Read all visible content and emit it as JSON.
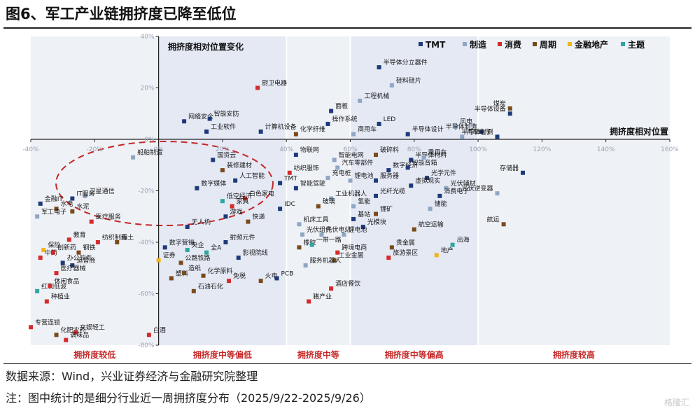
{
  "figure": {
    "title": "图6、军工产业链拥挤度已降至低位",
    "source": "数据来源：Wind，兴业证券经济与金融研究院整理",
    "note": "注：图中统计的是细分行业近一周拥挤度分布（2025/9/22-2025/9/26）",
    "watermark": "格隆汇"
  },
  "chart_data": {
    "type": "scatter",
    "title": "拥挤度相对位置变化",
    "xlabel": "拥挤度相对位置",
    "ylabel": "",
    "xlim": [
      -40,
      160
    ],
    "ylim": [
      -80,
      40
    ],
    "x_ticks": [
      "-40%",
      "-20%",
      "0%",
      "20%",
      "40%",
      "60%",
      "80%",
      "100%",
      "120%",
      "140%",
      "160%"
    ],
    "y_ticks": [
      "40%",
      "20%",
      "0%",
      "-20%",
      "-40%",
      "-60%",
      "-80%"
    ],
    "grid": false,
    "legend_position": "top-right",
    "zones": [
      {
        "label": "拥挤度较低",
        "from": -40,
        "to": 0
      },
      {
        "label": "拥挤度中等偏低",
        "from": 0,
        "to": 40
      },
      {
        "label": "拥挤度中等",
        "from": 40,
        "to": 60
      },
      {
        "label": "拥挤度中等偏高",
        "from": 60,
        "to": 100
      },
      {
        "label": "拥挤度较高",
        "from": 100,
        "to": 160
      }
    ],
    "highlight": "dashed-ellipse",
    "categories": [
      {
        "name": "TMT",
        "color": "#1f3a7a"
      },
      {
        "name": "制造",
        "color": "#8fa6c4"
      },
      {
        "name": "消费",
        "color": "#d62b2b"
      },
      {
        "name": "周期",
        "color": "#7a4a1a"
      },
      {
        "name": "金融地产",
        "color": "#f0b51c"
      },
      {
        "name": "主题",
        "color": "#2ea6a0"
      }
    ],
    "points": [
      {
        "label": "半导体分立器件",
        "group": "TMT",
        "x": 69,
        "y": 28
      },
      {
        "label": "硅料硅片",
        "group": "制造",
        "x": 73,
        "y": 21
      },
      {
        "label": "厨卫电器",
        "group": "消费",
        "x": 31,
        "y": 20
      },
      {
        "label": "工程机械",
        "group": "制造",
        "x": 63,
        "y": 15
      },
      {
        "label": "面板",
        "group": "TMT",
        "x": 54,
        "y": 11
      },
      {
        "label": "煤炭",
        "group": "周期",
        "x": 110,
        "y": 12
      },
      {
        "label": "半导体设备",
        "group": "TMT",
        "x": 110,
        "y": 10
      },
      {
        "label": "网络安全",
        "group": "TMT",
        "x": 8,
        "y": 7
      },
      {
        "label": "智能安防",
        "group": "TMT",
        "x": 16,
        "y": 8
      },
      {
        "label": "操作系统",
        "group": "TMT",
        "x": 53,
        "y": 6
      },
      {
        "label": "LED",
        "group": "TMT",
        "x": 69,
        "y": 6
      },
      {
        "label": "风电",
        "group": "制造",
        "x": 93,
        "y": 5
      },
      {
        "label": "半导体制造",
        "group": "TMT",
        "x": 101,
        "y": 3
      },
      {
        "label": "工业软件",
        "group": "TMT",
        "x": 15,
        "y": 3
      },
      {
        "label": "计算机设备",
        "group": "TMT",
        "x": 32,
        "y": 3
      },
      {
        "label": "化学纤维",
        "group": "周期",
        "x": 43,
        "y": 2
      },
      {
        "label": "商用车",
        "group": "制造",
        "x": 61,
        "y": 2
      },
      {
        "label": "半导体设计",
        "group": "TMT",
        "x": 78,
        "y": 2
      },
      {
        "label": "汽车电子",
        "group": "制造",
        "x": 95,
        "y": 1
      },
      {
        "label": "半导体封测",
        "group": "TMT",
        "x": 106,
        "y": 1
      },
      {
        "label": "船舶制造",
        "group": "制造",
        "x": -8,
        "y": -7
      },
      {
        "label": "国资云",
        "group": "TMT",
        "x": 17,
        "y": -8
      },
      {
        "label": "物联网",
        "group": "TMT",
        "x": 43,
        "y": -6
      },
      {
        "label": "智能电网",
        "group": "制造",
        "x": 55,
        "y": -8
      },
      {
        "label": "破碎料",
        "group": "周期",
        "x": 68,
        "y": -6
      },
      {
        "label": "半导体材料",
        "group": "TMT",
        "x": 79,
        "y": -8
      },
      {
        "label": "乘用车",
        "group": "制造",
        "x": 83,
        "y": -7
      },
      {
        "label": "装修建材",
        "group": "周期",
        "x": 20,
        "y": -12
      },
      {
        "label": "汽车零部件",
        "group": "制造",
        "x": 56,
        "y": -11
      },
      {
        "label": "数字经济",
        "group": "TMT",
        "x": 72,
        "y": -12
      },
      {
        "label": "智能音箱",
        "group": "TMT",
        "x": 78,
        "y": -11
      },
      {
        "label": "人工智能",
        "group": "TMT",
        "x": 24,
        "y": -16
      },
      {
        "label": "纺织服饰",
        "group": "消费",
        "x": 41,
        "y": -13
      },
      {
        "label": "充电桩",
        "group": "制造",
        "x": 53,
        "y": -15
      },
      {
        "label": "锂电池",
        "group": "制造",
        "x": 60,
        "y": -16
      },
      {
        "label": "服务器",
        "group": "TMT",
        "x": 68,
        "y": -16
      },
      {
        "label": "光学元件",
        "group": "TMT",
        "x": 84,
        "y": -15
      },
      {
        "label": "TMT",
        "group": "TMT",
        "x": 38,
        "y": -17
      },
      {
        "label": "数字媒体",
        "group": "TMT",
        "x": 12,
        "y": -19
      },
      {
        "label": "智能驾驶",
        "group": "TMT",
        "x": 43,
        "y": -19
      },
      {
        "label": "虚拟现实",
        "group": "TMT",
        "x": 79,
        "y": -18
      },
      {
        "label": "光伏辅材",
        "group": "制造",
        "x": 90,
        "y": -19
      },
      {
        "label": "存储器",
        "group": "TMT",
        "x": 114,
        "y": -13
      },
      {
        "label": "卫星通信",
        "group": "制造",
        "x": -23,
        "y": -22
      },
      {
        "label": "IT服务",
        "group": "TMT",
        "x": -27,
        "y": -23
      },
      {
        "label": "白色家电",
        "group": "消费",
        "x": 27,
        "y": -23
      },
      {
        "label": "低空经济",
        "group": "主题",
        "x": 20,
        "y": -24
      },
      {
        "label": "工业机器人",
        "group": "制造",
        "x": 54,
        "y": -23
      },
      {
        "label": "光纤光缆",
        "group": "TMT",
        "x": 68,
        "y": -22
      },
      {
        "label": "消费电子",
        "group": "TMT",
        "x": 88,
        "y": -22
      },
      {
        "label": "光伏逆变器",
        "group": "制造",
        "x": 106,
        "y": -21
      },
      {
        "label": "金融IT",
        "group": "TMT",
        "x": -37,
        "y": -25
      },
      {
        "label": "水电",
        "group": "周期",
        "x": -32,
        "y": -27
      },
      {
        "label": "水泥",
        "group": "周期",
        "x": -27,
        "y": -28
      },
      {
        "label": "家具",
        "group": "消费",
        "x": 23,
        "y": -26
      },
      {
        "label": "IDC",
        "group": "TMT",
        "x": 38,
        "y": -27
      },
      {
        "label": "玻璃",
        "group": "周期",
        "x": 50,
        "y": -26
      },
      {
        "label": "氢能",
        "group": "制造",
        "x": 61,
        "y": -26
      },
      {
        "label": "储能",
        "group": "制造",
        "x": 85,
        "y": -27
      },
      {
        "label": "锂矿",
        "group": "周期",
        "x": 68,
        "y": -29
      },
      {
        "label": "军工电子",
        "group": "制造",
        "x": -38,
        "y": -30
      },
      {
        "label": "医疗服务",
        "group": "消费",
        "x": -21,
        "y": -32
      },
      {
        "label": "游戏",
        "group": "TMT",
        "x": 21,
        "y": -30
      },
      {
        "label": "快递",
        "group": "周期",
        "x": 28,
        "y": -32
      },
      {
        "label": "基站",
        "group": "TMT",
        "x": 61,
        "y": -31
      },
      {
        "label": "机床工具",
        "group": "制造",
        "x": 44,
        "y": -33
      },
      {
        "label": "光模块",
        "group": "TMT",
        "x": 64,
        "y": -34
      },
      {
        "label": "航运",
        "group": "周期",
        "x": 108,
        "y": -33
      },
      {
        "label": "无人机",
        "group": "TMT",
        "x": 9,
        "y": -34
      },
      {
        "label": "光伏组件",
        "group": "制造",
        "x": 45,
        "y": -37
      },
      {
        "label": "光伏电站",
        "group": "制造",
        "x": 51,
        "y": -37
      },
      {
        "label": "锂电池",
        "group": "制造",
        "x": 58,
        "y": -37
      },
      {
        "label": "航空运输",
        "group": "周期",
        "x": 80,
        "y": -35
      },
      {
        "label": "射频元件",
        "group": "TMT",
        "x": 21,
        "y": -40
      },
      {
        "label": "教育",
        "group": "消费",
        "x": -28,
        "y": -39
      },
      {
        "label": "纺织制造",
        "group": "消费",
        "x": -19,
        "y": -40
      },
      {
        "label": "稀土",
        "group": "周期",
        "x": -13,
        "y": -40
      },
      {
        "label": "数字营销",
        "group": "TMT",
        "x": 2,
        "y": -42
      },
      {
        "label": "央企",
        "group": "主题",
        "x": 9,
        "y": -43
      },
      {
        "label": "全A",
        "group": "主题",
        "x": 15,
        "y": -44
      },
      {
        "label": "橡胶",
        "group": "周期",
        "x": 44,
        "y": -42
      },
      {
        "label": "一带一路",
        "group": "主题",
        "x": 48,
        "y": -41
      },
      {
        "label": "跨境电商",
        "group": "消费",
        "x": 56,
        "y": -44
      },
      {
        "label": "贵金属",
        "group": "周期",
        "x": 73,
        "y": -42
      },
      {
        "label": "出海",
        "group": "主题",
        "x": 92,
        "y": -41
      },
      {
        "label": "保险",
        "group": "金融地产",
        "x": -36,
        "y": -43
      },
      {
        "label": "钢铁",
        "group": "周期",
        "x": -25,
        "y": -44
      },
      {
        "label": "证券",
        "group": "金融地产",
        "x": 0,
        "y": -47
      },
      {
        "label": "公路铁路",
        "group": "周期",
        "x": 7,
        "y": -48
      },
      {
        "label": "影视院线",
        "group": "TMT",
        "x": 25,
        "y": -46
      },
      {
        "label": "工业金属",
        "group": "周期",
        "x": 55,
        "y": -47
      },
      {
        "label": "旅游景区",
        "group": "消费",
        "x": 72,
        "y": -46
      },
      {
        "label": "地产",
        "group": "金融地产",
        "x": 87,
        "y": -45
      },
      {
        "label": "中药",
        "group": "消费",
        "x": -37,
        "y": -46
      },
      {
        "label": "创新药",
        "group": "消费",
        "x": -33,
        "y": -44
      },
      {
        "label": "办公软件",
        "group": "TMT",
        "x": -30,
        "y": -48
      },
      {
        "label": "运营商",
        "group": "TMT",
        "x": -27,
        "y": -49
      },
      {
        "label": "服务机器人",
        "group": "制造",
        "x": 46,
        "y": -49
      },
      {
        "label": "医疗器械",
        "group": "消费",
        "x": -32,
        "y": -52
      },
      {
        "label": "塑料",
        "group": "周期",
        "x": 4,
        "y": -54
      },
      {
        "label": "造纸",
        "group": "周期",
        "x": 8,
        "y": -52
      },
      {
        "label": "化学原料",
        "group": "周期",
        "x": 14,
        "y": -53
      },
      {
        "label": "免税",
        "group": "消费",
        "x": 22,
        "y": -55
      },
      {
        "label": "火电",
        "group": "周期",
        "x": 32,
        "y": -55
      },
      {
        "label": "PCB",
        "group": "TMT",
        "x": 37,
        "y": -54
      },
      {
        "label": "酒店餐饮",
        "group": "消费",
        "x": 54,
        "y": -58
      },
      {
        "label": "红利低波",
        "group": "主题",
        "x": -38,
        "y": -59
      },
      {
        "label": "休闲食品",
        "group": "消费",
        "x": -34,
        "y": -57
      },
      {
        "label": "石油石化",
        "group": "周期",
        "x": 11,
        "y": -59
      },
      {
        "label": "种植业",
        "group": "消费",
        "x": -35,
        "y": -63
      },
      {
        "label": "猪产业",
        "group": "消费",
        "x": 47,
        "y": -63
      },
      {
        "label": "专营连锁",
        "group": "消费",
        "x": -40,
        "y": -73
      },
      {
        "label": "化肥农药",
        "group": "周期",
        "x": -32,
        "y": -76
      },
      {
        "label": "文娱轻工",
        "group": "消费",
        "x": -26,
        "y": -75
      },
      {
        "label": "白酒",
        "group": "消费",
        "x": -3,
        "y": -76
      },
      {
        "label": "调味品",
        "group": "消费",
        "x": -29,
        "y": -78
      }
    ]
  }
}
